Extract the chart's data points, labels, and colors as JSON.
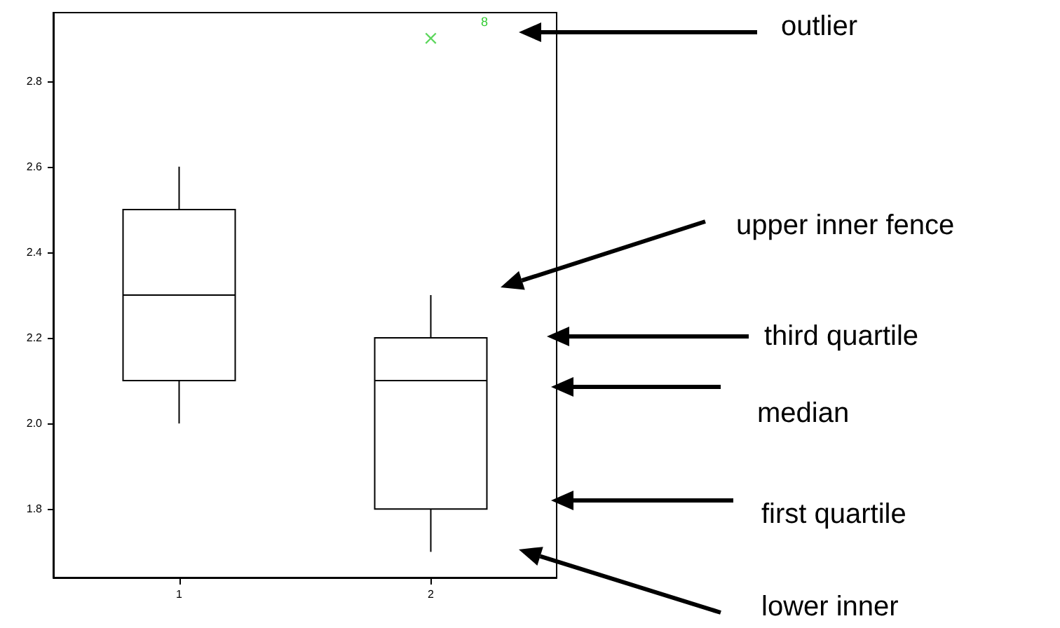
{
  "chart_data": {
    "type": "box",
    "categories": [
      "1",
      "2"
    ],
    "series": [
      {
        "color": "#000000",
        "boxes": [
          {
            "low": 2.0,
            "q1": 2.1,
            "median": 2.3,
            "q3": 2.5,
            "high": 2.6
          },
          {
            "low": 1.7,
            "q1": 1.8,
            "median": 2.1,
            "q3": 2.2,
            "high": 2.3
          }
        ]
      },
      {
        "type": "scatter",
        "color": "#33cc33",
        "x": [
          "2"
        ],
        "values": [
          2.9
        ]
      }
    ],
    "ylim": [
      1.64,
      2.96
    ],
    "yticks": [
      1.8,
      {
        "value": 2,
        "label": "2.0"
      },
      2.2,
      2.4,
      2.6,
      2.8
    ],
    "grid": false,
    "marker": "cross",
    "annotations": [
      "outlier",
      "upper inner fence",
      "third quartile",
      "median",
      "first quartile",
      "lower inner",
      "8"
    ]
  }
}
